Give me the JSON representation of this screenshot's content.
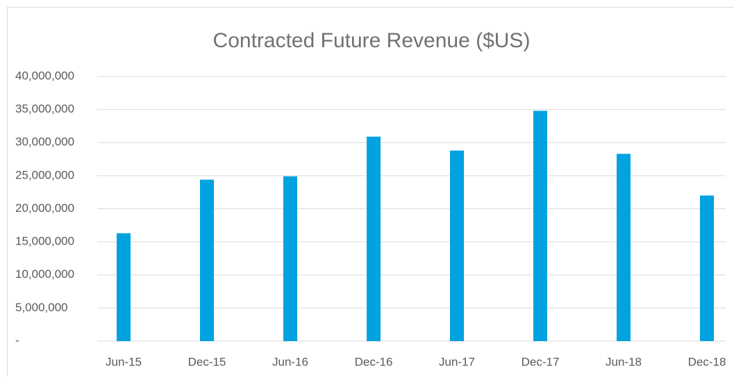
{
  "chart_data": {
    "type": "bar",
    "title": "Contracted Future Revenue ($US)",
    "categories": [
      "Jun-15",
      "Dec-15",
      "Jun-16",
      "Dec-16",
      "Jun-17",
      "Dec-17",
      "Jun-18",
      "Dec-18"
    ],
    "values": [
      16300000,
      24400000,
      24900000,
      30900000,
      28800000,
      34800000,
      28300000,
      22000000
    ],
    "color": "#00a2e0",
    "ylim": [
      0,
      40000000
    ],
    "yticks": [
      {
        "value": 0,
        "label": "-"
      },
      {
        "value": 5000000,
        "label": "5,000,000"
      },
      {
        "value": 10000000,
        "label": "10,000,000"
      },
      {
        "value": 15000000,
        "label": "15,000,000"
      },
      {
        "value": 20000000,
        "label": "20,000,000"
      },
      {
        "value": 25000000,
        "label": "25,000,000"
      },
      {
        "value": 30000000,
        "label": "30,000,000"
      },
      {
        "value": 35000000,
        "label": "35,000,000"
      },
      {
        "value": 40000000,
        "label": "40,000,000"
      }
    ],
    "grid": true
  }
}
